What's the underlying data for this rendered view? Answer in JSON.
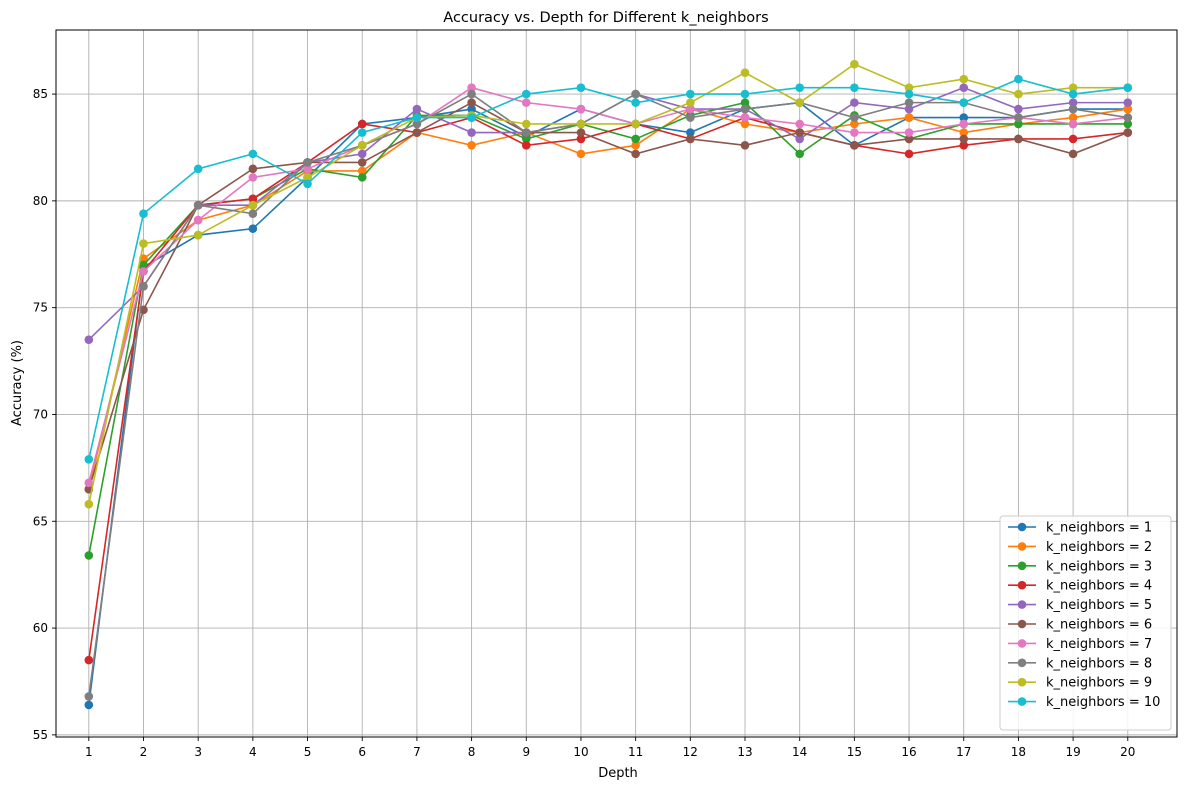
{
  "chart_data": {
    "type": "line",
    "title": "Accuracy vs. Depth for Different k_neighbors",
    "xlabel": "Depth",
    "ylabel": "Accuracy (%)",
    "x": [
      1,
      2,
      3,
      4,
      5,
      6,
      7,
      8,
      9,
      10,
      11,
      12,
      13,
      14,
      15,
      16,
      17,
      18,
      19,
      20
    ],
    "xlim": [
      0.4,
      20.9
    ],
    "ylim": [
      54.9,
      88.0
    ],
    "yticks": [
      55,
      60,
      65,
      70,
      75,
      80,
      85
    ],
    "grid": true,
    "legend_position": "lower-right",
    "series": [
      {
        "name": "k_neighbors = 1",
        "color": "#1f77b4",
        "values": [
          56.4,
          76.9,
          78.4,
          78.7,
          81.1,
          83.6,
          83.9,
          84.3,
          83.0,
          84.3,
          83.6,
          83.2,
          84.3,
          84.6,
          82.6,
          83.9,
          83.9,
          83.9,
          84.3,
          84.3
        ]
      },
      {
        "name": "k_neighbors = 2",
        "color": "#ff7f0e",
        "values": [
          66.5,
          77.3,
          79.1,
          79.8,
          81.4,
          81.4,
          83.2,
          82.6,
          83.2,
          82.2,
          82.6,
          84.3,
          83.6,
          83.2,
          83.6,
          83.9,
          83.2,
          83.6,
          83.9,
          84.3
        ]
      },
      {
        "name": "k_neighbors = 3",
        "color": "#2ca02c",
        "values": [
          63.4,
          77.0,
          79.8,
          80.1,
          81.5,
          81.1,
          84.0,
          84.0,
          82.9,
          83.6,
          82.9,
          84.0,
          84.6,
          82.2,
          84.0,
          82.9,
          83.6,
          83.6,
          83.6,
          83.6
        ]
      },
      {
        "name": "k_neighbors = 4",
        "color": "#d62728",
        "values": [
          58.5,
          76.7,
          79.8,
          80.1,
          81.8,
          83.6,
          83.2,
          83.9,
          82.6,
          82.9,
          83.6,
          82.9,
          83.9,
          83.2,
          82.6,
          82.2,
          82.6,
          82.9,
          82.9,
          83.2
        ]
      },
      {
        "name": "k_neighbors = 5",
        "color": "#9467bd",
        "values": [
          73.5,
          76.0,
          79.8,
          79.8,
          81.8,
          82.2,
          84.3,
          83.2,
          83.2,
          83.6,
          85.0,
          84.3,
          84.3,
          82.9,
          84.6,
          84.3,
          85.3,
          84.3,
          84.6,
          84.6
        ]
      },
      {
        "name": "k_neighbors = 6",
        "color": "#8c564b",
        "values": [
          66.5,
          74.9,
          79.8,
          81.5,
          81.8,
          81.8,
          83.2,
          84.6,
          83.2,
          83.2,
          82.2,
          82.9,
          82.6,
          83.2,
          82.6,
          82.9,
          82.9,
          82.9,
          82.2,
          83.2
        ]
      },
      {
        "name": "k_neighbors = 7",
        "color": "#e377c2",
        "values": [
          66.8,
          76.7,
          79.1,
          81.1,
          81.5,
          82.6,
          83.6,
          85.3,
          84.6,
          84.3,
          83.6,
          84.3,
          83.9,
          83.6,
          83.2,
          83.2,
          83.6,
          83.9,
          83.6,
          83.9
        ]
      },
      {
        "name": "k_neighbors = 8",
        "color": "#7f7f7f",
        "values": [
          56.8,
          76.0,
          79.8,
          79.4,
          81.8,
          82.6,
          83.6,
          85.0,
          83.2,
          83.6,
          85.0,
          83.9,
          84.3,
          84.6,
          83.9,
          84.6,
          84.6,
          83.9,
          84.3,
          83.9
        ]
      },
      {
        "name": "k_neighbors = 9",
        "color": "#bcbd22",
        "values": [
          65.8,
          78.0,
          78.4,
          79.8,
          81.1,
          82.6,
          83.9,
          84.0,
          83.6,
          83.6,
          83.6,
          84.6,
          86.0,
          84.6,
          86.4,
          85.3,
          85.7,
          85.0,
          85.3,
          85.3
        ]
      },
      {
        "name": "k_neighbors = 10",
        "color": "#17becf",
        "values": [
          67.9,
          79.4,
          81.5,
          82.2,
          80.8,
          83.2,
          83.9,
          83.9,
          85.0,
          85.3,
          84.6,
          85.0,
          85.0,
          85.3,
          85.3,
          85.0,
          84.6,
          85.7,
          85.0,
          85.3
        ]
      }
    ]
  }
}
